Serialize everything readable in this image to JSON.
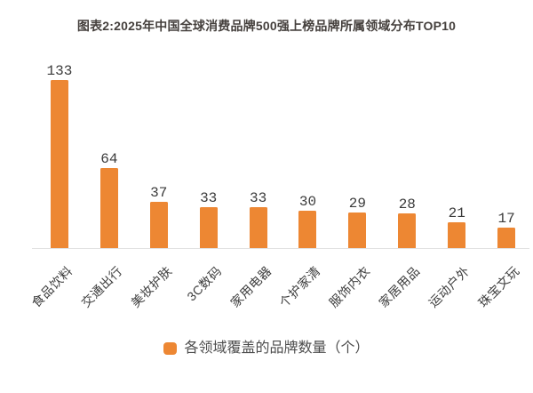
{
  "title": "图表2:2025年中国全球消费品牌500强上榜品牌所属领域分布TOP10",
  "legend": {
    "label": "各领域覆盖的品牌数量（个）"
  },
  "colors": {
    "bar": "#ed8733",
    "title_text": "#45403d",
    "value_text": "#3b3b3b",
    "category_text": "#3d3d3d",
    "legend_text": "#4d4d4d",
    "axis_line": "#e2e2e2",
    "background": "#ffffff"
  },
  "chart_data": {
    "type": "bar",
    "title": "图表2:2025年中国全球消费品牌500强上榜品牌所属领域分布TOP10",
    "categories": [
      "食品饮料",
      "交通出行",
      "美妆护肤",
      "3C数码",
      "家用电器",
      "个护家清",
      "服饰内衣",
      "家居用品",
      "运动户外",
      "珠宝文玩"
    ],
    "values": [
      133,
      64,
      37,
      33,
      33,
      30,
      29,
      28,
      21,
      17
    ],
    "series_name": "各领域覆盖的品牌数量（个）",
    "xlabel": "",
    "ylabel": "",
    "ylim": [
      0,
      140
    ],
    "grid": false,
    "value_labels": true,
    "category_label_rotation": -45,
    "legend_position": "bottom",
    "bar_color": "#ed8733"
  }
}
